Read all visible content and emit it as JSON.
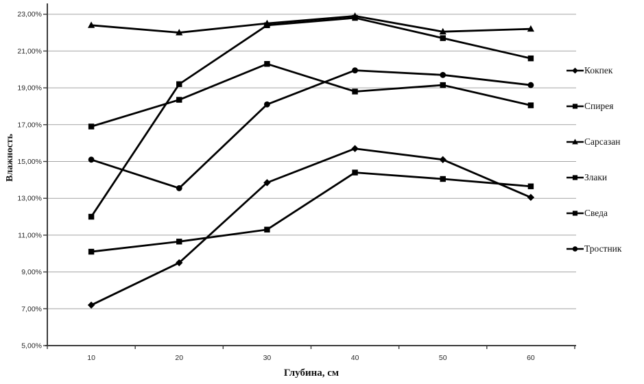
{
  "chart_data": {
    "type": "line",
    "title": "",
    "xlabel": "Глубина, см",
    "ylabel": "Влажность",
    "x_categories": [
      "10",
      "20",
      "30",
      "40",
      "50",
      "60"
    ],
    "y_tick_labels": [
      "5,00%",
      "7,00%",
      "9,00%",
      "11,00%",
      "13,00%",
      "15,00%",
      "17,00%",
      "19,00%",
      "21,00%",
      "23,00%"
    ],
    "ylim": [
      5,
      23
    ],
    "y_step": 2,
    "unit": "percent",
    "grid": true,
    "legend_position": "right",
    "series": [
      {
        "name": "Кокпек",
        "marker": "diamond",
        "values": [
          7.2,
          9.5,
          13.85,
          15.7,
          15.1,
          13.05
        ]
      },
      {
        "name": "Спирея",
        "marker": "square",
        "values": [
          10.1,
          10.65,
          11.3,
          14.4,
          14.05,
          13.65
        ]
      },
      {
        "name": "Сарсазан",
        "marker": "triangle",
        "values": [
          22.4,
          22.0,
          22.5,
          22.9,
          22.05,
          22.2
        ]
      },
      {
        "name": "Злаки",
        "marker": "square",
        "values": [
          16.9,
          18.35,
          20.3,
          18.8,
          19.15,
          18.05
        ]
      },
      {
        "name": "Сведа",
        "marker": "square",
        "values": [
          12.0,
          19.2,
          22.4,
          22.8,
          21.7,
          20.6
        ]
      },
      {
        "name": "Тростник",
        "marker": "circle",
        "values": [
          15.1,
          13.55,
          18.1,
          19.95,
          19.7,
          19.15
        ]
      }
    ],
    "colors": {
      "series_line": "#000000",
      "gridline": "#a3a3a3",
      "axis": "#3a3a3a",
      "tick_text": "#262626",
      "background": "#ffffff"
    }
  }
}
